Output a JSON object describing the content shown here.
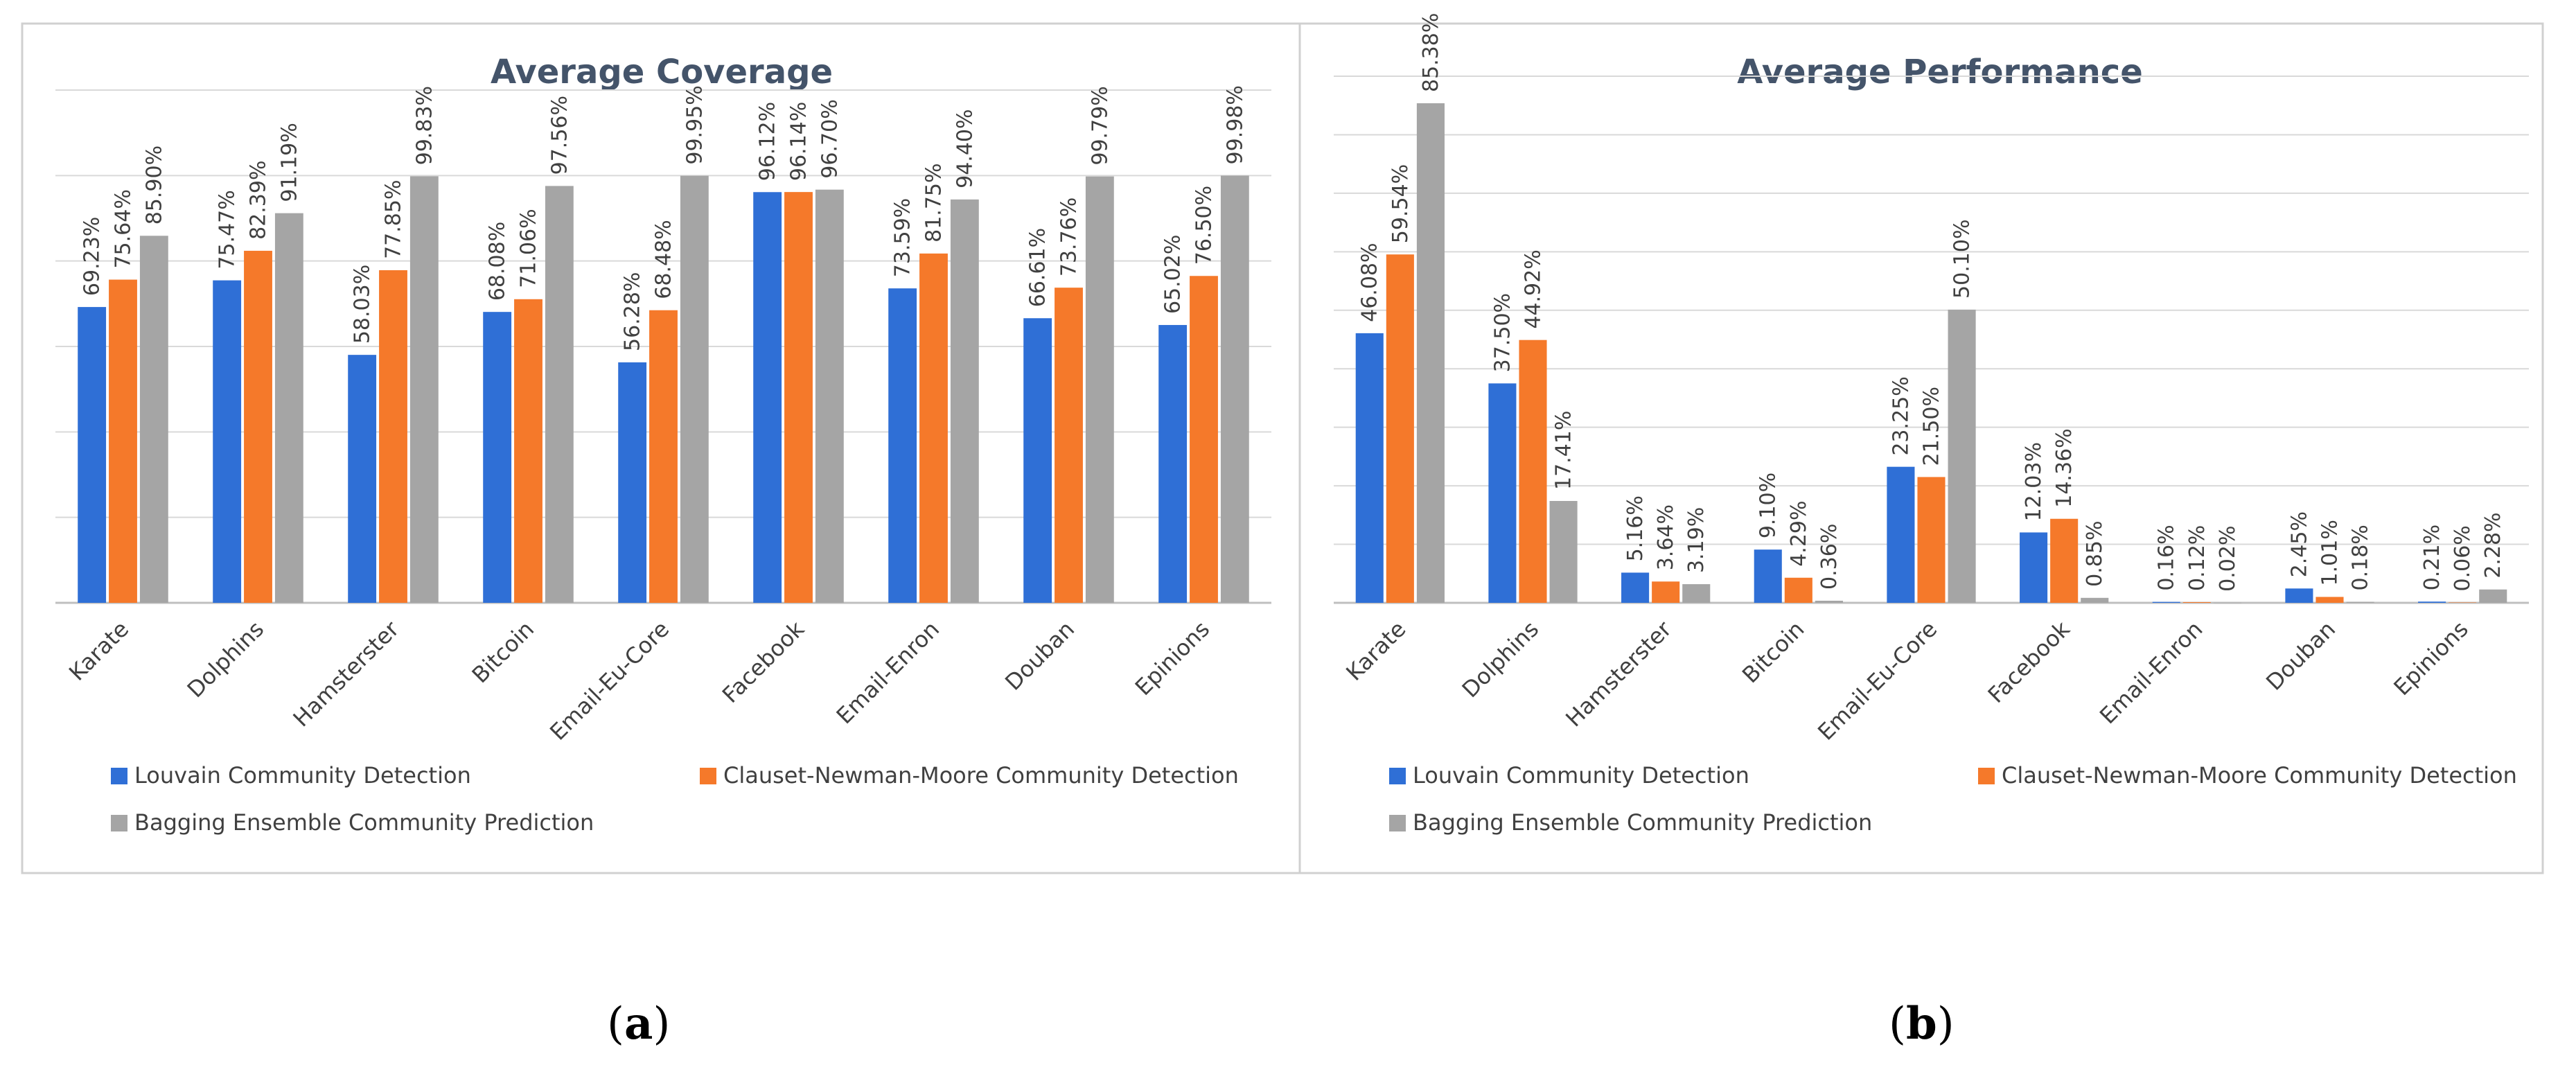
{
  "captions": [
    {
      "open": "(",
      "letter": "a",
      "close": ")"
    },
    {
      "open": "(",
      "letter": "b",
      "close": ")"
    }
  ],
  "colors": {
    "louvain": "#2f6fd6",
    "clauset": "#f5792a",
    "bagging": "#a5a5a5",
    "grid": "#d9d9d9",
    "title": "#44546a",
    "border": "#d0d0d0"
  },
  "chart_data": [
    {
      "type": "bar",
      "title": "Average Coverage",
      "categories": [
        "Karate",
        "Dolphins",
        "Hamsterster",
        "Bitcoin",
        "Email-Eu-Core",
        "Facebook",
        "Email-Enron",
        "Douban",
        "Epinions"
      ],
      "series": [
        {
          "name": "Louvain Community Detection",
          "color": "#2f6fd6",
          "values": [
            69.23,
            75.47,
            58.03,
            68.08,
            56.28,
            96.12,
            73.59,
            66.61,
            65.02
          ],
          "labels": [
            "69.23%",
            "75.47%",
            "58.03%",
            "68.08%",
            "56.28%",
            "96.12%",
            "73.59%",
            "66.61%",
            "65.02%"
          ]
        },
        {
          "name": "Clauset-Newman-Moore Community Detection",
          "color": "#f5792a",
          "values": [
            75.64,
            82.39,
            77.85,
            71.06,
            68.48,
            96.14,
            81.75,
            73.76,
            76.5
          ],
          "labels": [
            "75.64%",
            "82.39%",
            "77.85%",
            "71.06%",
            "68.48%",
            "96.14%",
            "81.75%",
            "73.76%",
            "76.50%"
          ]
        },
        {
          "name": "Bagging Ensemble Community Prediction",
          "color": "#a5a5a5",
          "values": [
            85.9,
            91.19,
            99.83,
            97.56,
            99.95,
            96.7,
            94.4,
            99.79,
            99.98
          ],
          "labels": [
            "85.90%",
            "91.19%",
            "99.83%",
            "97.56%",
            "99.95%",
            "96.70%",
            "94.40%",
            "99.79%",
            "99.98%"
          ]
        }
      ],
      "ylim": [
        0,
        120
      ],
      "grid": true,
      "legend": "bottom"
    },
    {
      "type": "bar",
      "title": "Average Performance",
      "categories": [
        "Karate",
        "Dolphins",
        "Hamsterster",
        "Bitcoin",
        "Email-Eu-Core",
        "Facebook",
        "Email-Enron",
        "Douban",
        "Epinions"
      ],
      "series": [
        {
          "name": "Louvain Community Detection",
          "color": "#2f6fd6",
          "values": [
            46.08,
            37.5,
            5.16,
            9.1,
            23.25,
            12.03,
            0.16,
            2.45,
            0.21
          ],
          "labels": [
            "46.08%",
            "37.50%",
            "5.16%",
            "9.10%",
            "23.25%",
            "12.03%",
            "0.16%",
            "2.45%",
            "0.21%"
          ]
        },
        {
          "name": "Clauset-Newman-Moore Community Detection",
          "color": "#f5792a",
          "values": [
            59.54,
            44.92,
            3.64,
            4.29,
            21.5,
            14.36,
            0.12,
            1.01,
            0.06
          ],
          "labels": [
            "59.54%",
            "44.92%",
            "3.64%",
            "4.29%",
            "21.50%",
            "14.36%",
            "0.12%",
            "1.01%",
            "0.06%"
          ]
        },
        {
          "name": "Bagging Ensemble Community Prediction",
          "color": "#a5a5a5",
          "values": [
            85.38,
            17.41,
            3.19,
            0.36,
            50.1,
            0.85,
            0.02,
            0.18,
            2.28
          ],
          "labels": [
            "85.38%",
            "17.41%",
            "3.19%",
            "0.36%",
            "50.10%",
            "0.85%",
            "0.02%",
            "0.18%",
            "2.28%"
          ]
        }
      ],
      "ylim": [
        0,
        90
      ],
      "grid": true,
      "legend": "bottom"
    }
  ]
}
